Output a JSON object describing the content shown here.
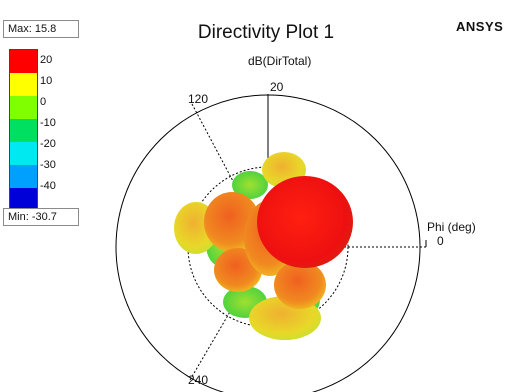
{
  "plot": {
    "title": "Directivity Plot 1",
    "brand": "ANSYS",
    "quantity_label": "dB(DirTotal)",
    "axis_label": "Phi (deg)",
    "angle_labels": {
      "a0": "0",
      "a120": "120",
      "a240": "240"
    },
    "radial_label": "20"
  },
  "legend": {
    "max_label": "Max: 15.8",
    "min_label": "Min: -30.7",
    "ticks": [
      "20",
      "10",
      "0",
      "-10",
      "-20",
      "-30",
      "-40"
    ],
    "colors": [
      "#ff0000",
      "#ffff00",
      "#80ff00",
      "#00e060",
      "#00e8f0",
      "#00a0ff",
      "#0000d8"
    ]
  },
  "colors": {
    "lobe_red": "#f01010",
    "lobe_orange": "#f08020",
    "lobe_yellow": "#e8e020",
    "lobe_green": "#70e030"
  }
}
